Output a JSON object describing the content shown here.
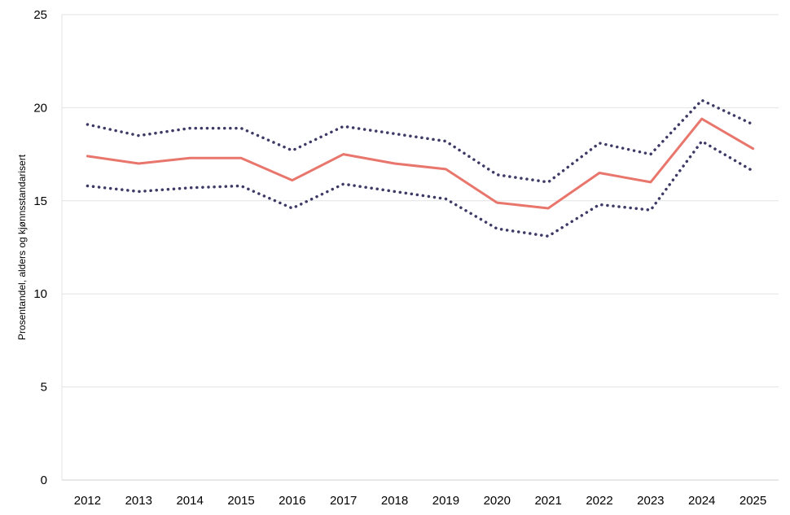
{
  "chart_data": {
    "type": "line",
    "title": "",
    "xlabel": "",
    "ylabel": "Prosentandel, alders og kjønnsstandarisert",
    "x": [
      "2012",
      "2013",
      "2014",
      "2015",
      "2016",
      "2017",
      "2018",
      "2019",
      "2020",
      "2021",
      "2022",
      "2023",
      "2024",
      "2025"
    ],
    "ylim": [
      0,
      25
    ],
    "yticks": [
      0,
      5,
      10,
      15,
      20,
      25
    ],
    "grid": "horizontal",
    "legend": "none",
    "series": [
      {
        "style": "dotted",
        "color": "#3d3b66",
        "values": [
          19.1,
          18.5,
          18.9,
          18.9,
          17.7,
          19.0,
          18.6,
          18.2,
          16.4,
          16.0,
          18.1,
          17.5,
          20.4,
          19.1
        ]
      },
      {
        "style": "solid",
        "color": "#e8766c",
        "values": [
          17.4,
          17.0,
          17.3,
          17.3,
          16.1,
          17.5,
          17.0,
          16.7,
          14.9,
          14.6,
          16.5,
          16.0,
          19.4,
          17.8
        ]
      },
      {
        "style": "dotted",
        "color": "#3d3b66",
        "values": [
          15.8,
          15.5,
          15.7,
          15.8,
          14.6,
          15.9,
          15.5,
          15.1,
          13.5,
          13.1,
          14.8,
          14.5,
          18.2,
          16.6
        ]
      }
    ]
  }
}
